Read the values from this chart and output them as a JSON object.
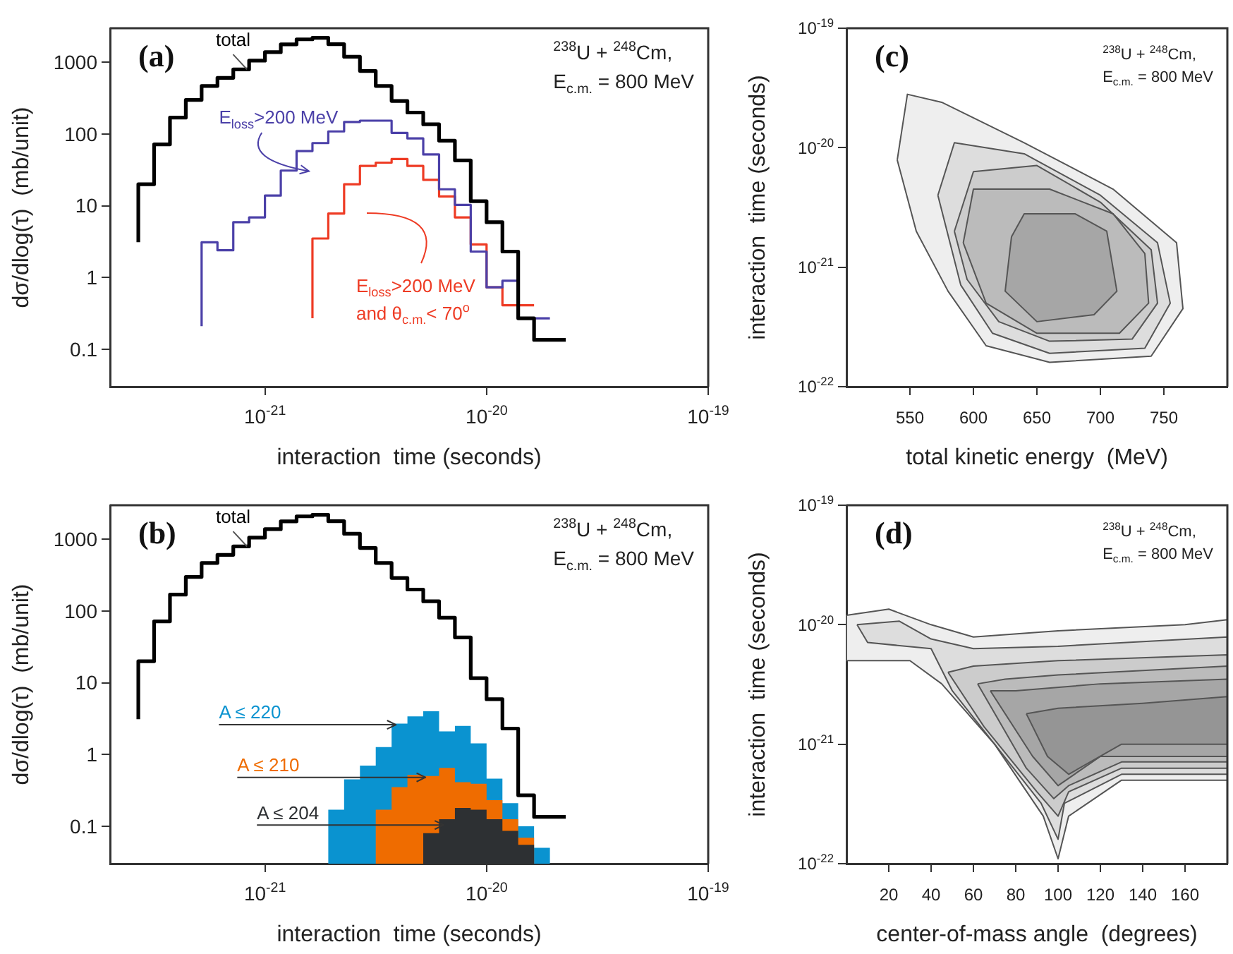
{
  "chart_data": [
    {
      "type": "step",
      "title": "(a)",
      "xlabel": "interaction  time (seconds)",
      "ylabel": "dσ/dlog(τ)  (mb/unit)",
      "annotations": [
        "$^{238}$U + $^{248}$Cm,",
        "E$_{c.m.}$ = 800 MeV"
      ],
      "series": [
        {
          "name": "total",
          "color": "#000000",
          "x": [
            2.683e-22,
            3.162e-22,
            3.728e-22,
            4.394e-22,
            5.179e-22,
            6.105e-22,
            7.197e-22,
            8.483e-22,
            1e-21,
            1.179e-21,
            1.389e-21,
            1.638e-21,
            1.931e-21,
            2.276e-21,
            2.683e-21,
            3.162e-21,
            3.728e-21,
            4.394e-21,
            5.179e-21,
            6.105e-21,
            7.197e-21,
            8.483e-21,
            1e-20,
            1.179e-20,
            1.389e-20,
            1.638e-20,
            1.931e-20,
            2.276e-20
          ],
          "values": [
            3.1,
            20,
            72,
            170,
            300,
            470,
            610,
            800,
            1060,
            1390,
            1790,
            2100,
            2200,
            1800,
            1200,
            760,
            470,
            290,
            200,
            137,
            81,
            43,
            11.6,
            5.9,
            2.3,
            0.27,
            0.135,
            0.135
          ]
        },
        {
          "name": "E$_{loss}$>200 MeV",
          "color": "#4b40a8",
          "x": [
            5.179e-22,
            6.105e-22,
            7.197e-22,
            8.483e-22,
            1e-21,
            1.179e-21,
            1.389e-21,
            1.638e-21,
            1.931e-21,
            2.276e-21,
            2.683e-21,
            3.162e-21,
            3.728e-21,
            4.394e-21,
            5.179e-21,
            6.105e-21,
            7.197e-21,
            8.483e-21,
            1e-20,
            1.179e-20,
            1.389e-20,
            1.638e-20,
            1.931e-20
          ],
          "values": [
            0.21,
            3.1,
            2.4,
            5.9,
            6.9,
            13.9,
            31,
            58,
            75,
            109,
            148,
            154,
            154,
            104,
            87,
            52,
            17,
            10.3,
            2.3,
            0.73,
            0.9,
            0.27,
            0.27
          ]
        },
        {
          "name": "E$_{loss}$>200 MeV and θ$_{c.m.}$< 70$^{o}$",
          "color": "#ee3b24",
          "x": [
            1.638e-21,
            1.931e-21,
            2.276e-21,
            2.683e-21,
            3.162e-21,
            3.728e-21,
            4.394e-21,
            5.179e-21,
            6.105e-21,
            7.197e-21,
            8.483e-21,
            1e-20,
            1.179e-20,
            1.389e-20,
            1.638e-20
          ],
          "values": [
            0.27,
            3.5,
            7.8,
            20,
            36,
            40,
            45,
            36,
            23,
            13.5,
            6.9,
            2.9,
            0.73,
            0.41,
            0.41
          ]
        }
      ],
      "log": "xy",
      "xlim": [
        2e-22,
        1e-19
      ],
      "xticks": [
        {
          "value": 1e-21,
          "label": "10$^{-21}$"
        },
        {
          "value": 1e-20,
          "label": "10$^{-20}$"
        },
        {
          "value": 1e-19,
          "label": "10$^{-19}$"
        }
      ],
      "ylim": [
        0.03,
        3000
      ],
      "yticks": [
        0.1,
        1,
        10,
        100,
        1000
      ]
    },
    {
      "type": "histogram",
      "title": "(b)",
      "xlabel": "interaction  time (seconds)",
      "ylabel": "dσ/dlog(τ)  (mb/unit)",
      "annotations": [
        "$^{238}$U + $^{248}$Cm,",
        "E$_{c.m.}$ = 800 MeV"
      ],
      "series": [
        {
          "name": "total",
          "type": "step",
          "color": "#000000",
          "x": [
            2.683e-22,
            3.162e-22,
            3.728e-22,
            4.394e-22,
            5.179e-22,
            6.105e-22,
            7.197e-22,
            8.483e-22,
            1e-21,
            1.179e-21,
            1.389e-21,
            1.638e-21,
            1.931e-21,
            2.276e-21,
            2.683e-21,
            3.162e-21,
            3.728e-21,
            4.394e-21,
            5.179e-21,
            6.105e-21,
            7.197e-21,
            8.483e-21,
            1e-20,
            1.179e-20,
            1.389e-20,
            1.638e-20,
            1.931e-20,
            2.276e-20
          ],
          "values": [
            3.1,
            20,
            72,
            170,
            300,
            470,
            610,
            800,
            1060,
            1390,
            1790,
            2100,
            2200,
            1800,
            1200,
            760,
            470,
            290,
            200,
            137,
            81,
            43,
            11.6,
            5.9,
            2.3,
            0.27,
            0.135,
            0.135
          ]
        },
        {
          "name": "A ≤ 220",
          "color": "#0a93d0",
          "bins": [
            1.931e-21,
            2.276e-21,
            2.683e-21,
            3.162e-21,
            3.728e-21,
            4.394e-21,
            5.179e-21,
            6.105e-21,
            7.197e-21,
            8.483e-21,
            1e-20,
            1.179e-20,
            1.389e-20,
            1.638e-20,
            1.931e-20
          ],
          "values": [
            0.17,
            0.45,
            0.7,
            1.27,
            2.7,
            3.4,
            4.0,
            2.1,
            2.5,
            1.43,
            0.46,
            0.21,
            0.1,
            0.05
          ]
        },
        {
          "name": "A ≤ 210",
          "color": "#ef6c00",
          "bins": [
            3.162e-21,
            3.728e-21,
            4.394e-21,
            5.179e-21,
            6.105e-21,
            7.197e-21,
            8.483e-21,
            1e-20,
            1.179e-20,
            1.389e-20,
            1.638e-20
          ],
          "values": [
            0.17,
            0.35,
            0.52,
            0.5,
            0.65,
            0.41,
            0.39,
            0.23,
            0.125,
            0.069
          ]
        },
        {
          "name": "A ≤ 204",
          "color": "#2d3033",
          "bins": [
            5.179e-21,
            6.105e-21,
            7.197e-21,
            8.483e-21,
            1e-20,
            1.179e-20,
            1.389e-20,
            1.638e-20
          ],
          "values": [
            0.08,
            0.125,
            0.18,
            0.17,
            0.125,
            0.086,
            0.055
          ]
        }
      ],
      "log": "xy",
      "xlim": [
        2e-22,
        1e-19
      ],
      "xticks": [
        {
          "value": 1e-21,
          "label": "10$^{-21}$"
        },
        {
          "value": 1e-20,
          "label": "10$^{-20}$"
        },
        {
          "value": 1e-19,
          "label": "10$^{-19}$"
        }
      ],
      "ylim": [
        0.03,
        3000
      ],
      "yticks": [
        0.1,
        1,
        10,
        100,
        1000
      ]
    },
    {
      "type": "area",
      "title": "(c)",
      "xlabel": "total kinetic energy  (MeV)",
      "ylabel": "interaction  time (seconds)",
      "annotations": [
        "$^{238}$U + $^{248}$Cm,",
        "E$_{c.m.}$ = 800 MeV"
      ],
      "series": [
        {
          "color": "#eeeeee",
          "x": [
            540,
            548,
            575,
            640,
            710,
            760,
            765,
            740,
            660,
            610,
            580,
            555,
            540
          ],
          "values": [
            7.9e-21,
            2.8e-20,
            2.4e-20,
            1.1e-20,
            4.5e-21,
            1.6e-21,
            4.5e-22,
            1.8e-22,
            1.6e-22,
            2.2e-22,
            6.3e-22,
            2e-21,
            7.9e-21
          ]
        },
        {
          "color": "#dddddd",
          "x": [
            572,
            585,
            640,
            700,
            745,
            755,
            735,
            660,
            615,
            590,
            572
          ],
          "values": [
            4e-21,
            1.1e-20,
            8.9e-21,
            4e-21,
            1.6e-21,
            5e-22,
            2.1e-22,
            1.9e-22,
            2.8e-22,
            7.1e-22,
            4e-21
          ]
        },
        {
          "color": "#cccccc",
          "x": [
            585,
            600,
            650,
            700,
            740,
            745,
            725,
            660,
            620,
            595,
            585
          ],
          "values": [
            2e-21,
            6.3e-21,
            7.1e-21,
            3.5e-21,
            1.4e-21,
            5e-22,
            2.5e-22,
            2.4e-22,
            3.5e-22,
            7.9e-22,
            2e-21
          ]
        },
        {
          "color": "#bbbbbb",
          "x": [
            592,
            600,
            660,
            710,
            735,
            738,
            715,
            650,
            610,
            592
          ],
          "values": [
            1.6e-21,
            4.5e-21,
            4.5e-21,
            2.8e-21,
            1.3e-21,
            5e-22,
            2.8e-22,
            2.8e-22,
            5e-22,
            1.6e-21
          ]
        },
        {
          "color": "#a6a6a6",
          "x": [
            630,
            640,
            680,
            705,
            713,
            695,
            650,
            625,
            630
          ],
          "values": [
            1.8e-21,
            2.8e-21,
            2.8e-21,
            2e-21,
            6.3e-22,
            4e-22,
            3.5e-22,
            6.3e-22,
            1.8e-21
          ]
        }
      ],
      "log": "y",
      "xlim": [
        500,
        800
      ],
      "xticks": [
        550,
        600,
        650,
        700,
        750
      ],
      "ylim": [
        1e-22,
        1e-19
      ],
      "yticks": [
        {
          "value": 1e-22,
          "label": "10$^{-22}$"
        },
        {
          "value": 1e-21,
          "label": "10$^{-21}$"
        },
        {
          "value": 1e-20,
          "label": "10$^{-20}$"
        },
        {
          "value": 1e-19,
          "label": "10$^{-19}$"
        }
      ]
    },
    {
      "type": "area",
      "title": "(d)",
      "xlabel": "center-of-mass angle  (degrees)",
      "ylabel": "interaction  time (seconds)",
      "annotations": [
        "$^{238}$U + $^{248}$Cm,",
        "E$_{c.m.}$ = 800 MeV"
      ],
      "series": [
        {
          "color": "#eeeeee",
          "x": [
            0,
            20,
            40,
            60,
            100,
            160,
            180,
            180,
            130,
            105,
            100,
            93,
            70,
            45,
            30,
            0,
            0
          ],
          "values": [
            1.2e-20,
            1.35e-20,
            1e-20,
            7.9e-21,
            8.9e-21,
            1e-20,
            1.1e-20,
            5e-22,
            5e-22,
            2.5e-22,
            1.1e-22,
            2.5e-22,
            1e-21,
            3.2e-21,
            5e-21,
            5e-21,
            1.2e-20
          ]
        },
        {
          "color": "#dddddd",
          "x": [
            5,
            25,
            40,
            60,
            100,
            180,
            180,
            130,
            103,
            100,
            92,
            70,
            50,
            40,
            10,
            5
          ],
          "values": [
            1e-20,
            1.07e-20,
            7.6e-21,
            6.3e-21,
            6.6e-21,
            7.9e-21,
            5.6e-22,
            5.6e-22,
            3.2e-22,
            1.6e-22,
            3.2e-22,
            1e-21,
            2.8e-21,
            6.3e-21,
            7.1e-21,
            1e-20
          ]
        },
        {
          "color": "#cccccc",
          "x": [
            48,
            60,
            100,
            180,
            180,
            130,
            105,
            100,
            90,
            65,
            48
          ],
          "values": [
            4e-21,
            4.5e-21,
            5e-21,
            5.6e-21,
            6.3e-22,
            6.3e-22,
            4e-22,
            2.5e-22,
            4e-22,
            1.4e-21,
            4e-21
          ]
        },
        {
          "color": "#bbbbbb",
          "x": [
            62,
            75,
            100,
            180,
            180,
            130,
            105,
            98,
            85,
            62
          ],
          "values": [
            3.2e-21,
            3.5e-21,
            3.8e-21,
            4.5e-21,
            7.1e-22,
            7.1e-22,
            4.5e-22,
            3.5e-22,
            6.3e-22,
            3.2e-21
          ]
        },
        {
          "color": "#a6a6a6",
          "x": [
            68,
            80,
            120,
            180,
            180,
            120,
            100,
            88,
            68
          ],
          "values": [
            2.8e-21,
            2.8e-21,
            3.2e-21,
            3.5e-21,
            7.9e-22,
            7.9e-22,
            4.5e-22,
            7.9e-22,
            2.8e-21
          ]
        },
        {
          "color": "#959595",
          "x": [
            85,
            100,
            140,
            180,
            180,
            130,
            105,
            95,
            85
          ],
          "values": [
            1.8e-21,
            2e-21,
            2.2e-21,
            2.5e-21,
            1e-21,
            1e-21,
            5.6e-22,
            7.9e-22,
            1.8e-21
          ]
        }
      ],
      "log": "y",
      "xlim": [
        0,
        180
      ],
      "xticks": [
        20,
        40,
        60,
        80,
        100,
        120,
        140,
        160
      ],
      "ylim": [
        1e-22,
        1e-19
      ],
      "yticks": [
        {
          "value": 1e-22,
          "label": "10$^{-22}$"
        },
        {
          "value": 1e-21,
          "label": "10$^{-21}$"
        },
        {
          "value": 1e-20,
          "label": "10$^{-20}$"
        },
        {
          "value": 1e-19,
          "label": "10$^{-19}$"
        }
      ]
    }
  ]
}
